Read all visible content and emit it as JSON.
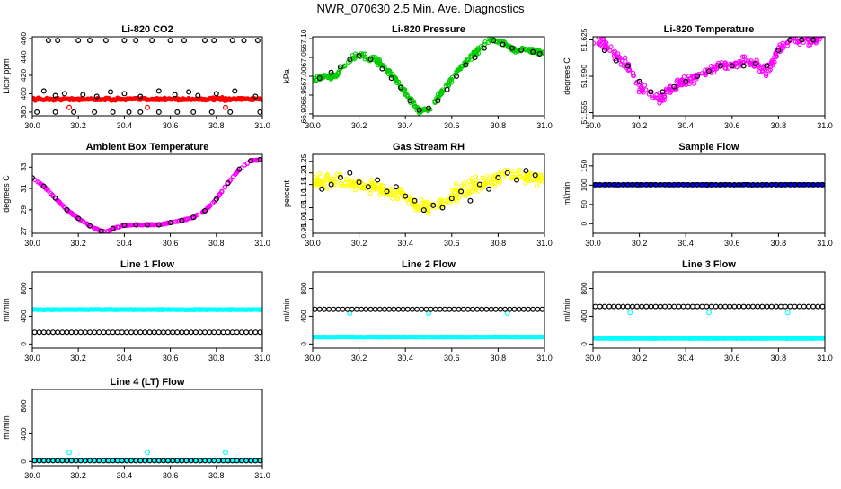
{
  "page_title": "NWR_070630  2.5 Min. Ave. Diagnostics",
  "colors": {
    "frame": "#000000",
    "overlay_points": "#000000",
    "co2": "#ff0000",
    "pressure": "#00cc00",
    "temperature": "#ff00ff",
    "ambient": "#ff00ff",
    "rh": "#ffff00",
    "sample_flow": "#0000ff",
    "line_flows": "#00ffff"
  },
  "chart_data": [
    {
      "id": "co2",
      "type": "scatter",
      "title": "Li-820 CO2",
      "ylabel": "Licor ppm",
      "xlim": [
        30.0,
        31.0
      ],
      "ylim": [
        376,
        462
      ],
      "xticks": [
        "30.0",
        "30.2",
        "30.4",
        "30.6",
        "30.8",
        "31.0"
      ],
      "yticks": [
        {
          "v": 380,
          "label": "380"
        },
        {
          "v": 400,
          "label": "400"
        },
        {
          "v": 420,
          "label": "420"
        },
        {
          "v": 440,
          "label": "440"
        },
        {
          "v": 460,
          "label": "460"
        }
      ],
      "series": [
        {
          "name": "co2_points",
          "color_key": "co2",
          "style": "band",
          "base": 394,
          "spread": 2.5,
          "n": 260
        },
        {
          "name": "co2_outliers",
          "color_key": "co2",
          "style": "ring",
          "x": [
            30.16,
            30.5,
            30.84
          ],
          "y": [
            385,
            385,
            385
          ]
        },
        {
          "name": "co2_averages_high",
          "color_key": "overlay_points",
          "style": "ring",
          "x": [
            30.07,
            30.11,
            30.2,
            30.25,
            30.32,
            30.4,
            30.45,
            30.52,
            30.6,
            30.66,
            30.75,
            30.79,
            30.87,
            30.92,
            30.98
          ],
          "y": [
            458,
            458,
            458,
            458,
            458,
            458,
            458,
            458,
            458,
            458,
            458,
            458,
            458,
            458,
            458
          ]
        },
        {
          "name": "co2_averages_mid",
          "color_key": "overlay_points",
          "style": "ring",
          "x": [
            30.05,
            30.1,
            30.14,
            30.22,
            30.28,
            30.34,
            30.4,
            30.47,
            30.55,
            30.62,
            30.68,
            30.72,
            30.8,
            30.88,
            30.97
          ],
          "y": [
            403,
            398,
            400,
            399,
            397,
            402,
            400,
            397,
            403,
            399,
            402,
            398,
            400,
            403,
            397
          ]
        },
        {
          "name": "co2_averages_low",
          "color_key": "overlay_points",
          "style": "ring",
          "x": [
            30.02,
            30.1,
            30.18,
            30.27,
            30.35,
            30.42,
            30.47,
            30.55,
            30.63,
            30.7,
            30.78,
            30.86,
            30.99
          ],
          "y": [
            380,
            380,
            380,
            380,
            380,
            380,
            380,
            380,
            380,
            380,
            380,
            380,
            380
          ]
        }
      ]
    },
    {
      "id": "pressure",
      "type": "scatter",
      "title": "Li-820 Pressure",
      "ylabel": "kPa",
      "xlim": [
        30.0,
        31.0
      ],
      "ylim": [
        66.895,
        67.105
      ],
      "xticks": [
        "30.0",
        "30.2",
        "30.4",
        "30.6",
        "30.8",
        "31.0"
      ],
      "yticks": [
        {
          "v": 66.9,
          "label": "66.90"
        },
        {
          "v": 66.95,
          "label": "66.95"
        },
        {
          "v": 67.0,
          "label": "67.00"
        },
        {
          "v": 67.05,
          "label": "67.05"
        },
        {
          "v": 67.1,
          "label": "67.10"
        }
      ],
      "series": [
        {
          "name": "pressure_curve",
          "color_key": "pressure",
          "style": "jitter_curve",
          "spread": 0.012,
          "n": 320,
          "x": [
            30.0,
            30.05,
            30.1,
            30.17,
            30.22,
            30.28,
            30.35,
            30.42,
            30.46,
            30.5,
            30.56,
            30.62,
            30.68,
            30.74,
            30.77,
            30.82,
            30.87,
            30.92,
            31.0
          ],
          "y": [
            66.99,
            67.0,
            67.0,
            67.05,
            67.055,
            67.04,
            67.0,
            66.94,
            66.905,
            66.91,
            66.96,
            67.01,
            67.05,
            67.085,
            67.1,
            67.09,
            67.07,
            67.07,
            67.06
          ]
        },
        {
          "name": "pressure_averages",
          "color_key": "overlay_points",
          "style": "ring",
          "x": [
            30.03,
            30.08,
            30.12,
            30.16,
            30.2,
            30.25,
            30.3,
            30.34,
            30.38,
            30.42,
            30.46,
            30.5,
            30.54,
            30.58,
            30.62,
            30.66,
            30.7,
            30.74,
            30.78,
            30.82,
            30.86,
            30.9,
            30.95,
            30.98
          ],
          "y": [
            66.995,
            67.01,
            67.025,
            67.045,
            67.055,
            67.045,
            67.02,
            66.995,
            66.97,
            66.935,
            66.91,
            66.915,
            66.935,
            66.965,
            67.0,
            67.03,
            67.05,
            67.075,
            67.095,
            67.085,
            67.075,
            67.07,
            67.065,
            67.06
          ]
        }
      ]
    },
    {
      "id": "temperature",
      "type": "scatter",
      "title": "Li-820 Temperature",
      "ylabel": "degrees C",
      "xlim": [
        30.0,
        31.0
      ],
      "ylim": [
        51.552,
        51.628
      ],
      "xticks": [
        "30.0",
        "30.2",
        "30.4",
        "30.6",
        "30.8",
        "31.0"
      ],
      "yticks": [
        {
          "v": 51.555,
          "label": "51.555"
        },
        {
          "v": 51.59,
          "label": "51.590"
        },
        {
          "v": 51.625,
          "label": "51.625"
        }
      ],
      "series": [
        {
          "name": "temp_curve",
          "color_key": "temperature",
          "style": "jitter_curve",
          "spread": 0.008,
          "n": 300,
          "x": [
            30.0,
            30.05,
            30.1,
            30.15,
            30.2,
            30.25,
            30.3,
            30.35,
            30.4,
            30.45,
            30.5,
            30.55,
            30.6,
            30.65,
            30.7,
            30.75,
            30.8,
            30.85,
            30.9,
            31.0
          ],
          "y": [
            51.625,
            51.62,
            51.61,
            51.6,
            51.58,
            51.57,
            51.57,
            51.58,
            51.585,
            51.59,
            51.595,
            51.6,
            51.6,
            51.605,
            51.6,
            51.595,
            51.615,
            51.625,
            51.625,
            51.625
          ]
        },
        {
          "name": "temp_averages",
          "color_key": "overlay_points",
          "style": "ring",
          "x": [
            30.05,
            30.1,
            30.15,
            30.2,
            30.25,
            30.3,
            30.35,
            30.4,
            30.45,
            30.5,
            30.55,
            30.6,
            30.65,
            30.7,
            30.75,
            30.8,
            30.85,
            30.9,
            30.95
          ],
          "y": [
            51.615,
            51.605,
            51.6,
            51.585,
            51.575,
            51.575,
            51.58,
            51.585,
            51.59,
            51.595,
            51.6,
            51.6,
            51.6,
            51.602,
            51.6,
            51.615,
            51.625,
            51.625,
            51.625
          ]
        }
      ]
    },
    {
      "id": "ambient",
      "type": "scatter",
      "title": "Ambient Box Temperature",
      "ylabel": "degrees C",
      "xlim": [
        30.0,
        31.0
      ],
      "ylim": [
        26.8,
        34.2
      ],
      "xticks": [
        "30.0",
        "30.2",
        "30.4",
        "30.6",
        "30.8",
        "31.0"
      ],
      "yticks": [
        {
          "v": 27,
          "label": "27"
        },
        {
          "v": 29,
          "label": "29"
        },
        {
          "v": 31,
          "label": "31"
        },
        {
          "v": 33,
          "label": "33"
        }
      ],
      "series": [
        {
          "name": "ambient_curve",
          "color_key": "ambient",
          "style": "jitter_curve",
          "spread": 0.06,
          "n": 260,
          "x": [
            30.0,
            30.05,
            30.1,
            30.15,
            30.2,
            30.25,
            30.3,
            30.33,
            30.36,
            30.4,
            30.45,
            30.5,
            30.55,
            30.6,
            30.65,
            30.7,
            30.75,
            30.8,
            30.85,
            30.9,
            30.95,
            31.0
          ],
          "y": [
            32.0,
            31.2,
            30.1,
            29.0,
            28.2,
            27.5,
            27.0,
            27.0,
            27.3,
            27.55,
            27.6,
            27.6,
            27.6,
            27.8,
            28.0,
            28.3,
            28.9,
            30.0,
            31.5,
            32.8,
            33.6,
            33.7
          ]
        },
        {
          "name": "ambient_averages",
          "color_key": "overlay_points",
          "style": "ring",
          "x": [
            30.0,
            30.05,
            30.1,
            30.15,
            30.2,
            30.25,
            30.3,
            30.35,
            30.4,
            30.45,
            30.5,
            30.55,
            30.6,
            30.65,
            30.7,
            30.75,
            30.8,
            30.85,
            30.9,
            30.95,
            30.99
          ],
          "y": [
            32.0,
            31.2,
            30.1,
            29.0,
            28.2,
            27.5,
            27.0,
            27.25,
            27.55,
            27.6,
            27.6,
            27.6,
            27.8,
            28.0,
            28.3,
            28.9,
            30.0,
            31.5,
            32.8,
            33.6,
            33.7
          ]
        }
      ]
    },
    {
      "id": "rh",
      "type": "scatter",
      "title": "Gas Stream RH",
      "ylabel": "percent",
      "xlim": [
        30.0,
        31.0
      ],
      "ylim": [
        0.94,
        1.28
      ],
      "xticks": [
        "30.0",
        "30.2",
        "30.4",
        "30.6",
        "30.8",
        "31.0"
      ],
      "yticks": [
        {
          "v": 0.95,
          "label": "0.95"
        },
        {
          "v": 1.0,
          "label": "1.00"
        },
        {
          "v": 1.05,
          "label": "1.05"
        },
        {
          "v": 1.1,
          "label": "1.10"
        },
        {
          "v": 1.15,
          "label": "1.15"
        },
        {
          "v": 1.2,
          "label": "1.20"
        },
        {
          "v": 1.25,
          "label": "1.25"
        }
      ],
      "series": [
        {
          "name": "rh_curve",
          "color_key": "rh",
          "style": "jitter_curve",
          "spread": 0.05,
          "n": 320,
          "x": [
            30.0,
            30.1,
            30.2,
            30.3,
            30.4,
            30.45,
            30.5,
            30.55,
            30.6,
            30.7,
            30.8,
            30.9,
            31.0
          ],
          "y": [
            1.16,
            1.17,
            1.15,
            1.13,
            1.1,
            1.06,
            1.05,
            1.06,
            1.1,
            1.15,
            1.18,
            1.19,
            1.17
          ]
        },
        {
          "name": "rh_averages",
          "color_key": "overlay_points",
          "style": "ring",
          "x": [
            30.04,
            30.08,
            30.12,
            30.16,
            30.2,
            30.24,
            30.28,
            30.32,
            30.36,
            30.4,
            30.44,
            30.48,
            30.52,
            30.56,
            30.6,
            30.64,
            30.68,
            30.72,
            30.76,
            30.8,
            30.84,
            30.88,
            30.92,
            30.96
          ],
          "y": [
            1.13,
            1.15,
            1.18,
            1.2,
            1.16,
            1.14,
            1.17,
            1.12,
            1.14,
            1.1,
            1.08,
            1.04,
            1.06,
            1.05,
            1.09,
            1.12,
            1.08,
            1.15,
            1.13,
            1.18,
            1.2,
            1.17,
            1.21,
            1.19
          ]
        }
      ]
    },
    {
      "id": "sample",
      "type": "scatter",
      "title": "Sample Flow",
      "ylabel": "ml/min",
      "xlim": [
        30.0,
        31.0
      ],
      "ylim": [
        -25,
        180
      ],
      "xticks": [
        "30.0",
        "30.2",
        "30.4",
        "30.6",
        "30.8",
        "31.0"
      ],
      "yticks": [
        {
          "v": 0,
          "label": "0"
        },
        {
          "v": 50,
          "label": "50"
        },
        {
          "v": 100,
          "label": "100"
        },
        {
          "v": 150,
          "label": "150"
        }
      ],
      "series": [
        {
          "name": "sample_points",
          "color_key": "sample_flow",
          "style": "band",
          "base": 101,
          "spread": 1.8,
          "n": 300
        },
        {
          "name": "sample_averages",
          "color_key": "overlay_points",
          "style": "ring_line",
          "base": 101,
          "n": 50
        }
      ]
    },
    {
      "id": "line1",
      "type": "scatter",
      "title": "Line 1 Flow",
      "ylabel": "ml/min",
      "xlim": [
        30.0,
        31.0
      ],
      "ylim": [
        -60,
        1040
      ],
      "xticks": [
        "30.0",
        "30.2",
        "30.4",
        "30.6",
        "30.8",
        "31.0"
      ],
      "yticks": [
        {
          "v": 0,
          "label": "0"
        },
        {
          "v": 400,
          "label": "400"
        },
        {
          "v": 800,
          "label": "800"
        }
      ],
      "series": [
        {
          "name": "line1_cyan",
          "color_key": "line_flows",
          "style": "band",
          "base": 495,
          "spread": 9,
          "n": 300
        },
        {
          "name": "line1_averages",
          "color_key": "overlay_points",
          "style": "ring_line",
          "base": 170,
          "n": 50
        }
      ]
    },
    {
      "id": "line2",
      "type": "scatter",
      "title": "Line 2 Flow",
      "ylabel": "ml/min",
      "xlim": [
        30.0,
        31.0
      ],
      "ylim": [
        -60,
        1040
      ],
      "xticks": [
        "30.0",
        "30.2",
        "30.4",
        "30.6",
        "30.8",
        "31.0"
      ],
      "yticks": [
        {
          "v": 0,
          "label": "0"
        },
        {
          "v": 400,
          "label": "400"
        },
        {
          "v": 800,
          "label": "800"
        }
      ],
      "series": [
        {
          "name": "line2_cyan",
          "color_key": "line_flows",
          "style": "band",
          "base": 100,
          "spread": 7,
          "n": 300
        },
        {
          "name": "line2_cyan_outliers",
          "color_key": "line_flows",
          "style": "ring",
          "x": [
            30.16,
            30.5,
            30.84
          ],
          "y": [
            445,
            445,
            445
          ]
        },
        {
          "name": "line2_averages",
          "color_key": "overlay_points",
          "style": "ring_line",
          "base": 500,
          "n": 50
        }
      ]
    },
    {
      "id": "line3",
      "type": "scatter",
      "title": "Line 3 Flow",
      "ylabel": "ml/min",
      "xlim": [
        30.0,
        31.0
      ],
      "ylim": [
        -60,
        1040
      ],
      "xticks": [
        "30.0",
        "30.2",
        "30.4",
        "30.6",
        "30.8",
        "31.0"
      ],
      "yticks": [
        {
          "v": 0,
          "label": "0"
        },
        {
          "v": 400,
          "label": "400"
        },
        {
          "v": 800,
          "label": "800"
        }
      ],
      "series": [
        {
          "name": "line3_cyan",
          "color_key": "line_flows",
          "style": "band",
          "base": 80,
          "spread": 7,
          "n": 300
        },
        {
          "name": "line3_cyan_outliers",
          "color_key": "line_flows",
          "style": "ring",
          "x": [
            30.16,
            30.5,
            30.84
          ],
          "y": [
            455,
            455,
            455
          ]
        },
        {
          "name": "line3_averages",
          "color_key": "overlay_points",
          "style": "ring_line",
          "base": 540,
          "n": 50
        }
      ]
    },
    {
      "id": "line4",
      "type": "scatter",
      "title": "Line 4 (LT) Flow",
      "ylabel": "ml/min",
      "xlim": [
        30.0,
        31.0
      ],
      "ylim": [
        -60,
        1040
      ],
      "xticks": [
        "30.0",
        "30.2",
        "30.4",
        "30.6",
        "30.8",
        "31.0"
      ],
      "yticks": [
        {
          "v": 0,
          "label": "0"
        },
        {
          "v": 400,
          "label": "400"
        },
        {
          "v": 800,
          "label": "800"
        }
      ],
      "series": [
        {
          "name": "line4_cyan",
          "color_key": "line_flows",
          "style": "band",
          "base": 12,
          "spread": 4,
          "n": 300
        },
        {
          "name": "line4_cyan_outliers",
          "color_key": "line_flows",
          "style": "ring",
          "x": [
            30.16,
            30.5,
            30.84
          ],
          "y": [
            130,
            130,
            130
          ]
        },
        {
          "name": "line4_averages",
          "color_key": "overlay_points",
          "style": "ring_line",
          "base": 12,
          "n": 50
        }
      ]
    }
  ]
}
